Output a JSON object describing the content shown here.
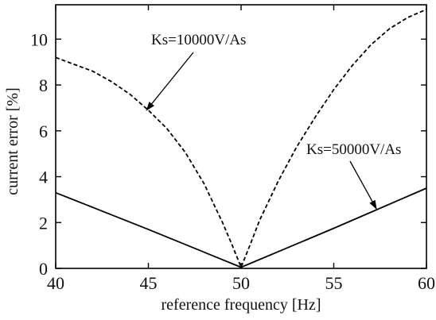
{
  "chart_data": {
    "type": "line",
    "title": "",
    "xlabel": "reference frequency [Hz]",
    "ylabel": "current error [%]",
    "xlim": [
      40,
      60
    ],
    "ylim": [
      0,
      11.5
    ],
    "x_ticks": [
      40,
      45,
      50,
      55,
      60
    ],
    "y_ticks": [
      0,
      2,
      4,
      6,
      8,
      10
    ],
    "grid": false,
    "legend": "none",
    "series": [
      {
        "name": "Ks=10000V/As",
        "style": "dashed",
        "color": "#000000",
        "x": [
          40,
          41,
          42,
          43,
          44,
          45,
          46,
          47,
          48,
          49,
          49.5,
          50,
          50.5,
          51,
          52,
          53,
          54,
          55,
          56,
          57,
          58,
          59,
          60
        ],
        "y": [
          9.2,
          8.9,
          8.6,
          8.15,
          7.6,
          6.9,
          6.1,
          5.05,
          3.7,
          2.0,
          1.05,
          0.05,
          1.05,
          2.1,
          3.8,
          5.3,
          6.6,
          7.8,
          8.85,
          9.75,
          10.45,
          10.95,
          11.3
        ]
      },
      {
        "name": "Ks=50000V/As",
        "style": "solid",
        "color": "#000000",
        "x": [
          40,
          45,
          50,
          55,
          60
        ],
        "y": [
          3.3,
          1.7,
          0.05,
          1.75,
          3.5
        ]
      }
    ],
    "annotations": [
      {
        "text": "Ks=10000V/As",
        "series": 0,
        "x": 44.9,
        "y": 6.9
      },
      {
        "text": "Ks=50000V/As",
        "series": 1,
        "x": 57.3,
        "y": 2.6
      }
    ]
  }
}
